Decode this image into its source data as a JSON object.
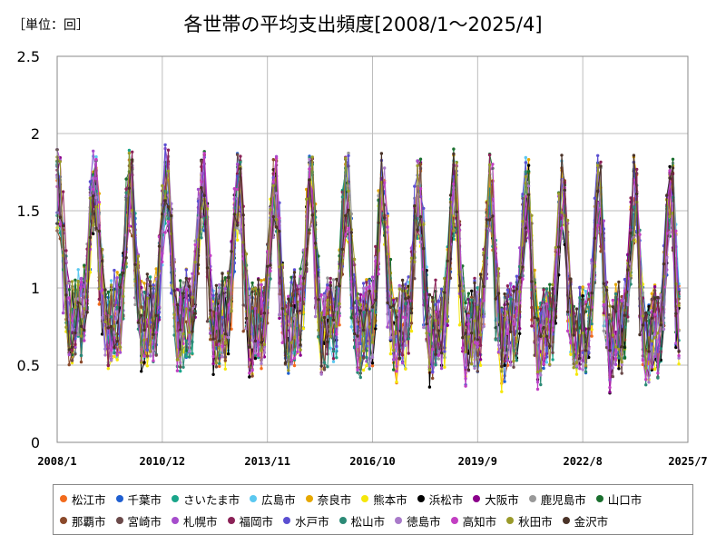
{
  "unit_label": "［単位：回］",
  "title": "各世帯の平均支出頻度[2008/1～2025/4]",
  "chart_data": {
    "type": "line",
    "title": "各世帯の平均支出頻度[2008/1～2025/4]",
    "unit": "［単位：回］",
    "x_range": [
      "2008/1",
      "2025/7"
    ],
    "x_ticks": [
      "2008/1",
      "2010/12",
      "2013/11",
      "2016/10",
      "2019/9",
      "2022/8",
      "2025/7"
    ],
    "ylim": [
      0,
      2.5
    ],
    "y_ticks": [
      "0",
      "0.5",
      "1",
      "1.5",
      "2",
      "2.5"
    ],
    "grid": true,
    "legend_position": "bottom",
    "series": [
      {
        "name": "松江市",
        "color": "#f26b1d"
      },
      {
        "name": "千葉市",
        "color": "#1f5fd1"
      },
      {
        "name": "さいたま市",
        "color": "#1aa58a"
      },
      {
        "name": "広島市",
        "color": "#5bc8f0"
      },
      {
        "name": "奈良市",
        "color": "#e6a800"
      },
      {
        "name": "熊本市",
        "color": "#f5e70a"
      },
      {
        "name": "浜松市",
        "color": "#000000"
      },
      {
        "name": "大阪市",
        "color": "#8b008b"
      },
      {
        "name": "鹿児島市",
        "color": "#999999"
      },
      {
        "name": "山口市",
        "color": "#1a6f2e"
      },
      {
        "name": "那覇市",
        "color": "#8b4a2b"
      },
      {
        "name": "宮崎市",
        "color": "#6b4a4a"
      },
      {
        "name": "札幌市",
        "color": "#a64dcc"
      },
      {
        "name": "福岡市",
        "color": "#8b2257"
      },
      {
        "name": "水戸市",
        "color": "#5b4fd1"
      },
      {
        "name": "松山市",
        "color": "#2b8a76"
      },
      {
        "name": "徳島市",
        "color": "#a97ac9"
      },
      {
        "name": "高知市",
        "color": "#c23fc2"
      },
      {
        "name": "秋田市",
        "color": "#9a9a2a"
      },
      {
        "name": "金沢市",
        "color": "#4a3328"
      }
    ]
  }
}
